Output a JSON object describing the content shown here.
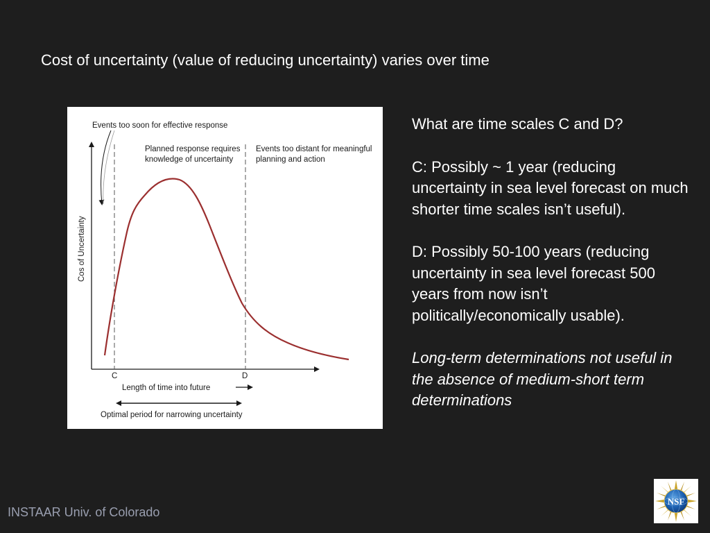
{
  "slide": {
    "title": "Cost of uncertainty (value of reducing uncertainty) varies over time"
  },
  "figure": {
    "annotation_top": "Events too soon for effective response",
    "region_middle_line1": "Planned response requires",
    "region_middle_line2": "knowledge of uncertainty",
    "region_right_line1": "Events too distant for meaningful",
    "region_right_line2": "planning and action",
    "y_axis_label": "Cos of Uncertainty",
    "tick_c": "C",
    "tick_d": "D",
    "x_axis_label": "Length of time into future",
    "bottom_label": "Optimal period for narrowing uncertainty",
    "curve_color": "#9b2f2f"
  },
  "side": {
    "question": "What are time scales C and D?",
    "answer_c": "C: Possibly ~ 1 year (reducing uncertainty in sea level forecast on much shorter time scales isn’t useful).",
    "answer_d": "D: Possibly 50-100 years (reducing uncertainty in sea level forecast 500 years from now isn’t politically/economically usable).",
    "conclusion": "Long-term determinations not useful in the absence of medium-short term determinations"
  },
  "footer": {
    "text": "INSTAAR Univ. of Colorado"
  },
  "logo": {
    "text": "NSF",
    "icon": "nsf-logo-icon"
  }
}
